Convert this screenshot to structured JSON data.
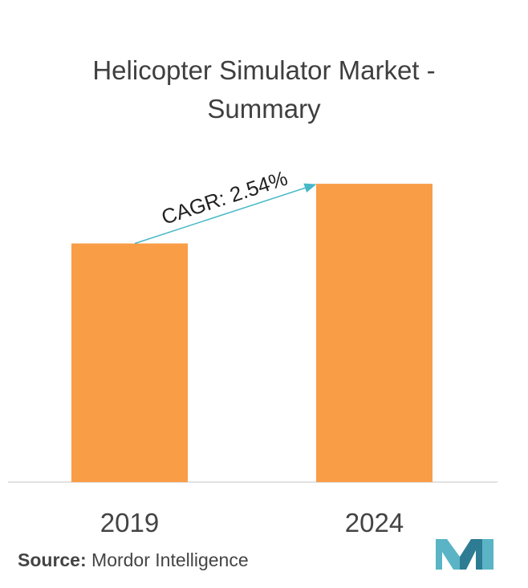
{
  "title": {
    "line1": "Helicopter Simulator Market -",
    "line2": "Summary"
  },
  "chart_data": {
    "type": "bar",
    "categories": [
      "2019",
      "2024"
    ],
    "values": [
      2.8,
      3.5
    ],
    "ylim": [
      0,
      4
    ],
    "grid": false,
    "bar_color": "#F99D46",
    "annotation": {
      "text": "CAGR: 2.54%",
      "arrow_color": "#47B8C8"
    }
  },
  "source": {
    "label": "Source:",
    "text": "Mordor Intelligence"
  },
  "logo": {
    "colors": [
      "#5AB4C5",
      "#2E7C93"
    ]
  }
}
